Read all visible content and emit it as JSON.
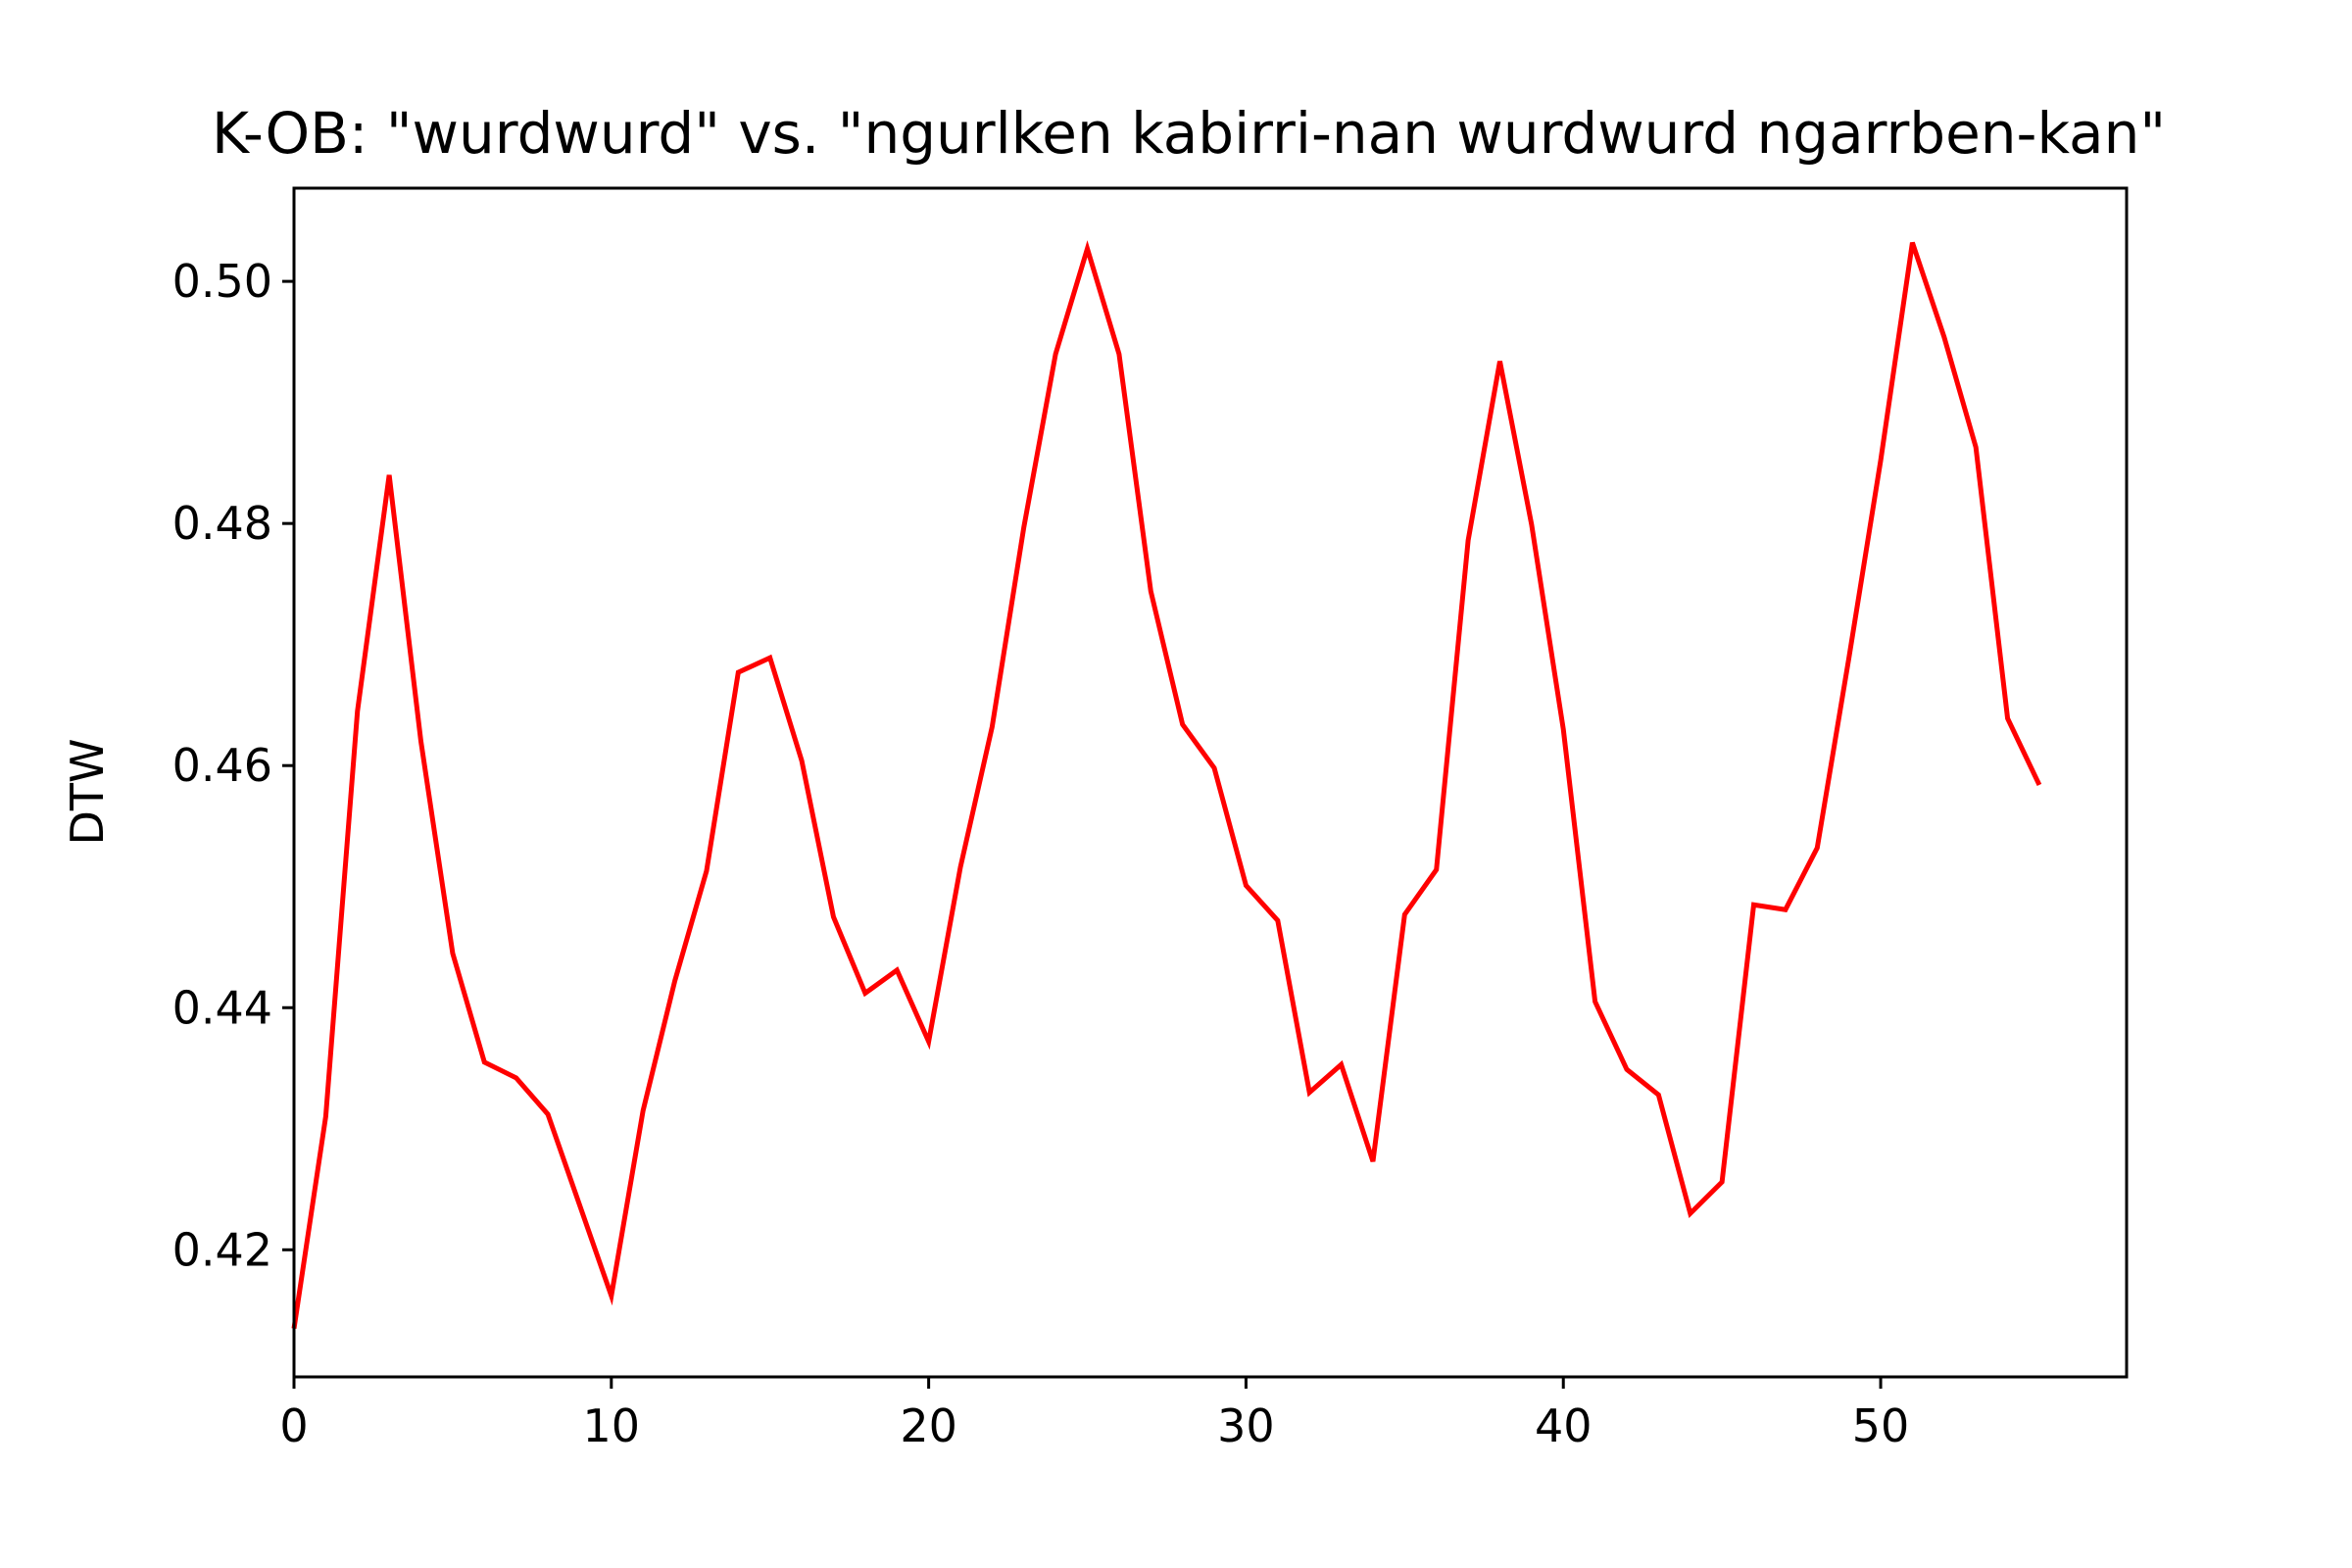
{
  "chart_data": {
    "type": "line",
    "title": "K-OB: \"wurdwurd\" vs. \"ngurlken kabirri-nan wurdwurd ngarrben-kan\"",
    "xlabel": "",
    "ylabel": "DTW",
    "xlim": [
      0,
      57.75
    ],
    "ylim": [
      0.4095,
      0.5077
    ],
    "xticks": [
      0,
      10,
      20,
      30,
      40,
      50
    ],
    "yticks": [
      0.42,
      0.44,
      0.46,
      0.48,
      0.5
    ],
    "ytick_labels": [
      "0.42",
      "0.44",
      "0.46",
      "0.48",
      "0.50"
    ],
    "xtick_labels": [
      "0",
      "10",
      "20",
      "30",
      "40",
      "50"
    ],
    "grid": false,
    "series": [
      {
        "color": "#ff0000",
        "x": [
          0,
          1,
          2,
          3,
          4,
          5,
          6,
          7,
          8,
          9,
          10,
          11,
          12,
          13,
          14,
          15,
          16,
          17,
          18,
          19,
          20,
          21,
          22,
          23,
          24,
          25,
          26,
          27,
          28,
          29,
          30,
          31,
          32,
          33,
          34,
          35,
          36,
          37,
          38,
          39,
          40,
          41,
          42,
          43,
          44,
          45,
          46,
          47,
          48,
          49,
          50,
          51,
          52,
          53,
          54,
          55
        ],
        "values": [
          0.4135,
          0.431,
          0.4645,
          0.484,
          0.462,
          0.4445,
          0.4355,
          0.4342,
          0.4312,
          0.4237,
          0.4162,
          0.4315,
          0.4422,
          0.4513,
          0.4677,
          0.4689,
          0.4604,
          0.4475,
          0.4412,
          0.4431,
          0.4372,
          0.4516,
          0.4632,
          0.4797,
          0.494,
          0.5027,
          0.494,
          0.4744,
          0.4634,
          0.4598,
          0.4501,
          0.4472,
          0.433,
          0.4353,
          0.4273,
          0.4477,
          0.4514,
          0.4786,
          0.4934,
          0.4799,
          0.463,
          0.4405,
          0.4349,
          0.4328,
          0.423,
          0.4256,
          0.4485,
          0.4481,
          0.4532,
          0.4689,
          0.4852,
          0.5032,
          0.4954,
          0.4863,
          0.4639,
          0.4584
        ]
      }
    ]
  }
}
